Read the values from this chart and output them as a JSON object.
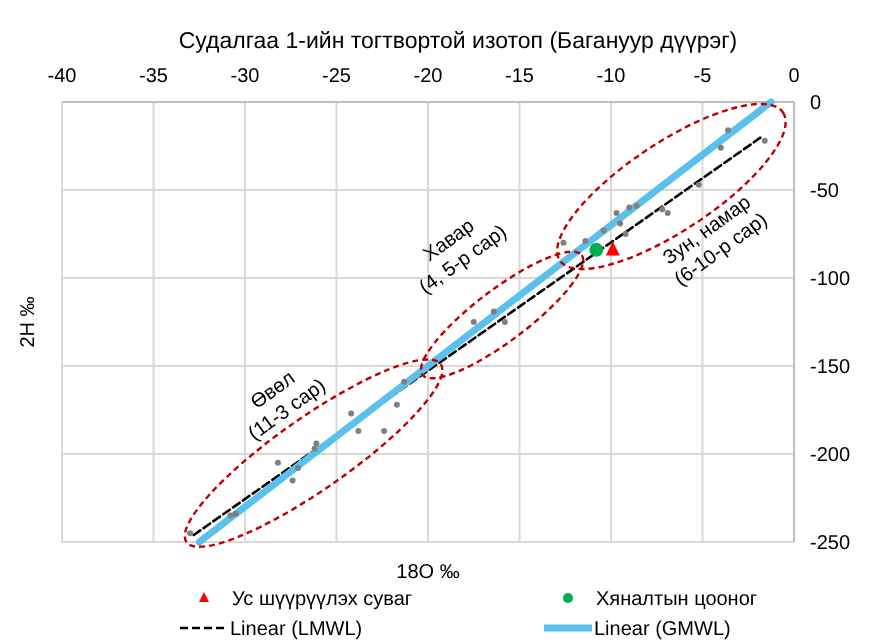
{
  "chart_data": {
    "type": "scatter",
    "title": "Судалгаа 1-ийн тогтвортой изотоп (Багануур дүүрэг)",
    "xlabel": "18O ‰",
    "ylabel": "2H ‰",
    "xlim": [
      -40,
      0
    ],
    "xticks": [
      -40,
      -35,
      -30,
      -25,
      -20,
      -15,
      -10,
      -5,
      0
    ],
    "ylim": [
      -250,
      0
    ],
    "yticks": [
      0,
      -50,
      -100,
      -150,
      -200,
      -250
    ],
    "grid": true,
    "legend": "bottom",
    "series": [
      {
        "color": "#808080",
        "marker": "circle",
        "x": [
          -3.6,
          -1.6,
          -4.0,
          -5.2,
          -9.7,
          -9.0,
          -8.6,
          -7.2,
          -6.9,
          -10.4,
          -9.2,
          -11.4,
          -12.6,
          -9.5,
          -17.5,
          -16.4,
          -15.8,
          -21.3,
          -24.2,
          -23.8,
          -21.7,
          -22.4,
          -26.1,
          -26.2,
          -28.2,
          -27.1,
          -27.4,
          -30.5,
          -30.8,
          -33.0
        ],
        "values": [
          -16,
          -22,
          -26,
          -47,
          -63,
          -60,
          -59,
          -61,
          -63,
          -73,
          -75,
          -79,
          -80,
          -69,
          -125,
          -119,
          -125,
          -159,
          -177,
          -187,
          -172,
          -187,
          -194,
          -197,
          -205,
          -208,
          -215,
          -234,
          -235,
          -245
        ]
      },
      {
        "name": "Ус шүүрүүлэх суваг",
        "color": "#ff0000",
        "marker": "triangle",
        "x": [
          -9.9
        ],
        "values": [
          -84
        ]
      },
      {
        "name": "Хяналтын цооног",
        "color": "#00b050",
        "marker": "circle",
        "x": [
          -10.8
        ],
        "values": [
          -84
        ]
      },
      {
        "name": "Linear (LMWL)",
        "type": "line",
        "color": "#000000",
        "line_style": "dashed",
        "x": [
          -32.8,
          -1.8
        ],
        "values": [
          -246,
          -20
        ]
      },
      {
        "name": "Linear (GMWL)",
        "type": "line",
        "color": "#5bc0eb",
        "line_style": "solid",
        "x": [
          -32.5,
          -1.25
        ],
        "values": [
          -250,
          0
        ]
      }
    ],
    "annotations": [
      "Өвөл\n(11-3 сар)",
      "Хавар\n(4, 5-р сар)",
      "Зун, намар\n(6-10-р сар)"
    ]
  }
}
